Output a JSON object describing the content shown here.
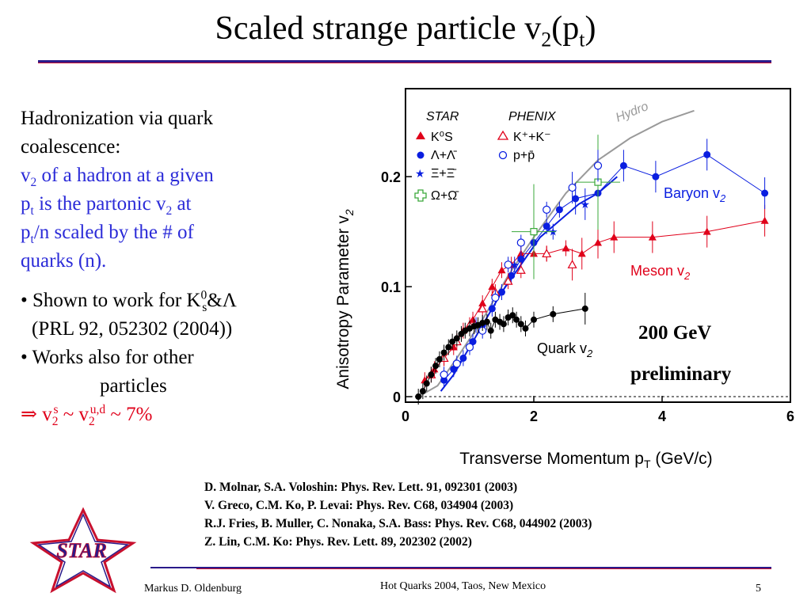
{
  "title": {
    "prefix": "Scaled strange particle v",
    "sub": "2",
    "mid": "(p",
    "sub2": "t",
    "suffix": ")"
  },
  "text": {
    "l1": "Hadronization via quark",
    "l2": "coalescence:",
    "b1a": "v",
    "b1sub": "2",
    "b1b": " of a hadron at a given",
    "b2a": "p",
    "b2sub": "t",
    "b2b": " is the partonic v",
    "b2sub2": "2",
    "b2c": " at",
    "b3a": "p",
    "b3sub": "t",
    "b3b": "/n scaled by the # of",
    "b4": "quarks (n).",
    "c1a": "• Shown to work for K",
    "c1sup": "0",
    "c1sub": "s",
    "c1b": "&Λ",
    "c2": "(PRL 92, 052302 (2004))",
    "c3": "• Works also for other",
    "c4": "particles",
    "r1a": "⇒ v",
    "r1sub": "2",
    "r1sup": "s",
    "r1b": " ~ v",
    "r1sub2": "2",
    "r1sup2": "u,d",
    "r1c": " ~ 7%"
  },
  "references": [
    "D. Molnar, S.A. Voloshin: Phys. Rev. Lett. 91, 092301 (2003)",
    "V. Greco, C.M. Ko, P. Levai: Phys. Rev. C68, 034904 (2003)",
    "R.J. Fries, B. Muller, C. Nonaka, S.A. Bass: Phys. Rev. C68, 044902 (2003)",
    "Z. Lin, C.M. Ko: Phys. Rev. Lett. 89, 202302 (2002)"
  ],
  "footer": {
    "author": "Markus D. Oldenburg",
    "venue": "Hot Quarks 2004, Taos, New Mexico",
    "page": "5"
  },
  "logo": {
    "text": "STAR"
  },
  "colors": {
    "red": "#e0001a",
    "blue": "#0a1ee0",
    "green": "#3aa83a",
    "dark": "#000000",
    "hydro": "#9a9a9a",
    "rule": "#2a1a8a"
  },
  "chart_data": {
    "type": "scatter",
    "xlabel": "Transverse Momentum  p",
    "xlabel_sub": "T",
    "xlabel_unit": " (GeV/c)",
    "ylabel": "Anisotropy Parameter  v",
    "ylabel_sub": "2",
    "xlim": [
      0,
      6
    ],
    "ylim": [
      -0.005,
      0.28
    ],
    "xticks": [
      "0",
      "2",
      "4",
      "6"
    ],
    "yticks": [
      "0",
      "0.1",
      "0.2"
    ],
    "ytick_values": [
      0,
      0.1,
      0.2
    ],
    "xtick_values": [
      0,
      2,
      4,
      6
    ],
    "legend": {
      "star_title": "STAR",
      "phenix_title": "PHENIX",
      "star": [
        "K⁰S",
        "Λ+Λ̄",
        "Ξ+Ξ̄",
        "Ω+Ω̄"
      ],
      "phenix": [
        "K⁺+K⁻",
        "p+p̄"
      ]
    },
    "annotations": {
      "hydro": "Hydro",
      "baryon": "Baryon v",
      "baryon_sub": "2",
      "meson": "Meson v",
      "meson_sub": "2",
      "quark": "Quark v",
      "quark_sub": "2",
      "energy": "200 GeV",
      "prelim": "preliminary"
    },
    "series": [
      {
        "name": "K⁰S",
        "color": "#e0001a",
        "marker": "triangle",
        "x": [
          0.3,
          0.45,
          0.6,
          0.75,
          0.9,
          1.05,
          1.2,
          1.35,
          1.5,
          1.65,
          1.8,
          2.0,
          2.2,
          2.5,
          2.75,
          3.0,
          3.25,
          3.85,
          4.7,
          5.6
        ],
        "y": [
          0.015,
          0.025,
          0.035,
          0.045,
          0.06,
          0.07,
          0.085,
          0.1,
          0.115,
          0.12,
          0.13,
          0.13,
          0.13,
          0.135,
          0.13,
          0.14,
          0.145,
          0.145,
          0.15,
          0.16
        ]
      },
      {
        "name": "Λ+Λ̄",
        "color": "#0a1ee0",
        "marker": "circle",
        "x": [
          0.6,
          0.75,
          0.9,
          1.05,
          1.2,
          1.35,
          1.5,
          1.65,
          1.8,
          2.0,
          2.2,
          2.4,
          2.65,
          3.0,
          3.4,
          3.9,
          4.7,
          5.6
        ],
        "y": [
          0.015,
          0.025,
          0.035,
          0.05,
          0.065,
          0.08,
          0.095,
          0.11,
          0.125,
          0.14,
          0.155,
          0.17,
          0.18,
          0.185,
          0.21,
          0.2,
          0.22,
          0.185
        ]
      },
      {
        "name": "Ξ+Ξ̄",
        "color": "#0a1ee0",
        "marker": "star",
        "x": [
          1.1,
          1.7,
          2.3,
          2.8
        ],
        "y": [
          0.065,
          0.12,
          0.15,
          0.175
        ]
      },
      {
        "name": "Ω+Ω̄",
        "color": "#3aa83a",
        "marker": "cross",
        "x": [
          2.0,
          3.0
        ],
        "y": [
          0.15,
          0.195
        ]
      },
      {
        "name": "K⁺+K⁻",
        "color": "#e0001a",
        "marker": "open-triangle",
        "x": [
          0.4,
          0.6,
          0.8,
          1.0,
          1.2,
          1.4,
          1.6,
          1.8,
          2.2,
          2.6
        ],
        "y": [
          0.02,
          0.035,
          0.05,
          0.065,
          0.08,
          0.095,
          0.105,
          0.115,
          0.13,
          0.12
        ]
      },
      {
        "name": "p+p̄",
        "color": "#0a1ee0",
        "marker": "open-circle",
        "x": [
          0.6,
          0.8,
          1.0,
          1.2,
          1.4,
          1.6,
          1.8,
          2.2,
          2.6,
          3.0
        ],
        "y": [
          0.02,
          0.03,
          0.045,
          0.06,
          0.09,
          0.12,
          0.14,
          0.17,
          0.19,
          0.21
        ]
      },
      {
        "name": "Quark v2",
        "color": "#000000",
        "marker": "circle-small",
        "x": [
          0.2,
          0.27,
          0.33,
          0.4,
          0.47,
          0.53,
          0.6,
          0.67,
          0.73,
          0.8,
          0.87,
          0.93,
          1.0,
          1.07,
          1.13,
          1.2,
          1.27,
          1.33,
          1.4,
          1.47,
          1.53,
          1.6,
          1.67,
          1.73,
          1.8,
          1.87,
          2.0,
          2.3,
          2.8
        ],
        "y": [
          0.0,
          0.005,
          0.012,
          0.02,
          0.028,
          0.034,
          0.04,
          0.045,
          0.05,
          0.053,
          0.057,
          0.06,
          0.062,
          0.064,
          0.065,
          0.067,
          0.068,
          0.06,
          0.07,
          0.068,
          0.066,
          0.072,
          0.074,
          0.07,
          0.066,
          0.062,
          0.07,
          0.075,
          0.08
        ]
      }
    ],
    "curves": [
      {
        "name": "Hydro",
        "color": "#9a9a9a",
        "style": "solid",
        "x": [
          0.2,
          0.5,
          0.8,
          1.2,
          1.6,
          2.0,
          2.5,
          3.0,
          3.5,
          4.0,
          4.5
        ],
        "y": [
          0.0,
          0.01,
          0.035,
          0.07,
          0.11,
          0.145,
          0.185,
          0.215,
          0.235,
          0.25,
          0.26
        ]
      },
      {
        "name": "Baryon v2",
        "color": "#0a1ee0",
        "style": "solid",
        "x": [
          0.55,
          0.75,
          0.95,
          1.2,
          1.5,
          1.8,
          2.1,
          2.4,
          2.7,
          3.0,
          3.3
        ],
        "y": [
          0.005,
          0.02,
          0.04,
          0.065,
          0.095,
          0.12,
          0.145,
          0.16,
          0.175,
          0.185,
          0.2
        ]
      }
    ]
  }
}
